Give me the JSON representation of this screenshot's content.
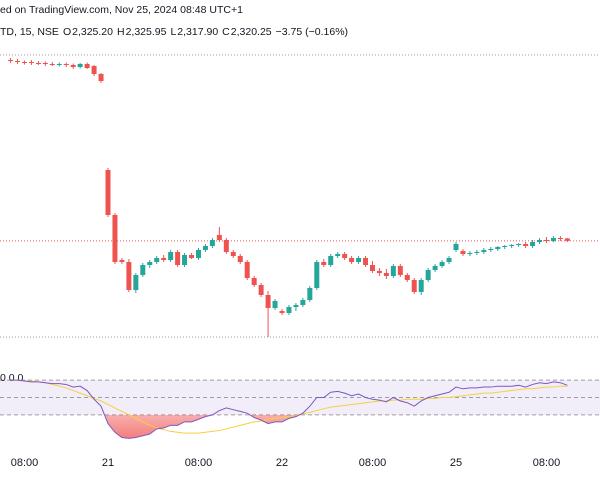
{
  "chart_data": {
    "type": "candlestick",
    "title": "ed on TradingView.com, Nov 25, 2024 08:48 UTC+1",
    "symbol": "TD, 15, NSE",
    "ohlc": [
      {
        "label": "O",
        "value": "2,325.20"
      },
      {
        "label": "H",
        "value": "2,325.95"
      },
      {
        "label": "L",
        "value": "2,317.90"
      },
      {
        "label": "C",
        "value": "2,320.25"
      }
    ],
    "change": "−3.75 (−0.16%)",
    "up_color": "#26a69a",
    "down_color": "#ef5350",
    "ylim": [
      2062,
      2802
    ],
    "price_lines": [
      2692,
      2128
    ],
    "open": [
      2682,
      2680,
      2678,
      2678,
      2676,
      2676,
      2674,
      2673,
      2674,
      2672,
      2668,
      2674,
      2670,
      2654,
      2462,
      2372,
      2282,
      2278,
      2222,
      2252,
      2272,
      2278,
      2286,
      2282,
      2298,
      2272,
      2292,
      2286,
      2302,
      2310,
      2332,
      2322,
      2298,
      2290,
      2278,
      2246,
      2232,
      2212,
      2186,
      2180,
      2176,
      2188,
      2192,
      2202,
      2226,
      2278,
      2272,
      2290,
      2294,
      2286,
      2278,
      2286,
      2272,
      2260,
      2256,
      2250,
      2270,
      2252,
      2242,
      2218,
      2242,
      2262,
      2270,
      2278,
      2302,
      2300,
      2294,
      2296,
      2298,
      2302,
      2304,
      2308,
      2310,
      2312,
      2314,
      2310,
      2318,
      2322,
      2320,
      2326,
      2325.2
    ],
    "high": [
      2686,
      2684,
      2681,
      2682,
      2680,
      2679,
      2678,
      2677,
      2677,
      2675,
      2676,
      2677,
      2672,
      2656,
      2466,
      2376,
      2286,
      2284,
      2256,
      2276,
      2282,
      2290,
      2292,
      2302,
      2302,
      2296,
      2296,
      2306,
      2314,
      2326,
      2348,
      2326,
      2302,
      2294,
      2282,
      2250,
      2236,
      2220,
      2204,
      2184,
      2192,
      2196,
      2206,
      2230,
      2282,
      2284,
      2294,
      2298,
      2298,
      2290,
      2290,
      2290,
      2280,
      2266,
      2264,
      2274,
      2274,
      2256,
      2246,
      2246,
      2266,
      2274,
      2282,
      2290,
      2318,
      2304,
      2300,
      2302,
      2306,
      2308,
      2310,
      2312,
      2314,
      2316,
      2318,
      2322,
      2326,
      2328,
      2330,
      2330,
      2325.95
    ],
    "low": [
      2676,
      2674,
      2673,
      2672,
      2672,
      2670,
      2670,
      2669,
      2668,
      2664,
      2665,
      2664,
      2650,
      2636,
      2368,
      2274,
      2274,
      2218,
      2216,
      2248,
      2266,
      2274,
      2278,
      2278,
      2268,
      2268,
      2284,
      2282,
      2298,
      2306,
      2318,
      2294,
      2286,
      2274,
      2242,
      2228,
      2208,
      2128,
      2182,
      2172,
      2172,
      2180,
      2188,
      2198,
      2222,
      2268,
      2268,
      2286,
      2282,
      2274,
      2274,
      2268,
      2256,
      2250,
      2244,
      2246,
      2248,
      2238,
      2214,
      2212,
      2238,
      2258,
      2266,
      2274,
      2298,
      2290,
      2290,
      2292,
      2294,
      2298,
      2300,
      2304,
      2306,
      2308,
      2306,
      2306,
      2314,
      2316,
      2318,
      2320,
      2317.9
    ],
    "close": [
      2680,
      2678,
      2677,
      2676,
      2675,
      2674,
      2673,
      2674,
      2672,
      2668,
      2674,
      2666,
      2654,
      2640,
      2372,
      2278,
      2278,
      2222,
      2252,
      2272,
      2278,
      2286,
      2282,
      2298,
      2272,
      2292,
      2286,
      2302,
      2310,
      2322,
      2322,
      2298,
      2290,
      2278,
      2246,
      2232,
      2212,
      2186,
      2200,
      2176,
      2188,
      2192,
      2202,
      2226,
      2278,
      2272,
      2290,
      2294,
      2286,
      2278,
      2286,
      2272,
      2260,
      2256,
      2250,
      2270,
      2252,
      2242,
      2218,
      2242,
      2262,
      2270,
      2278,
      2286,
      2314,
      2294,
      2296,
      2298,
      2302,
      2304,
      2308,
      2310,
      2312,
      2314,
      2310,
      2318,
      2322,
      2320,
      2326,
      2325,
      2320.25
    ],
    "xticks": [
      {
        "value": 2,
        "label": "08:00"
      },
      {
        "value": 14,
        "label": "21"
      },
      {
        "value": 27,
        "label": "08:00"
      },
      {
        "value": 39,
        "label": "22"
      },
      {
        "value": 52,
        "label": "08:00"
      },
      {
        "value": 64,
        "label": "25"
      },
      {
        "value": 77,
        "label": "08:00"
      }
    ],
    "rsi": {
      "legend": "0  0  0",
      "ylim": [
        0,
        100
      ],
      "levels": [
        70,
        50,
        30
      ],
      "color": "#7e57c2",
      "ma_color": "#f5d040",
      "values": [
        70,
        70,
        69,
        68,
        68,
        67,
        66,
        66,
        65,
        62,
        63,
        58,
        48,
        40,
        20,
        10,
        4,
        3,
        4,
        6,
        8,
        14,
        15,
        18,
        18,
        22,
        22,
        25,
        28,
        30,
        35,
        38,
        36,
        34,
        32,
        27,
        24,
        20,
        22,
        22,
        26,
        28,
        32,
        40,
        50,
        50,
        56,
        57,
        55,
        52,
        54,
        50,
        48,
        47,
        45,
        50,
        46,
        44,
        40,
        46,
        50,
        52,
        54,
        56,
        62,
        60,
        61,
        61,
        62,
        62,
        63,
        63,
        63,
        64,
        62,
        65,
        67,
        66,
        68,
        67,
        64
      ],
      "ma": [
        70,
        70,
        69,
        69,
        68,
        67,
        65,
        63,
        61,
        58,
        55,
        52,
        49,
        46,
        42,
        38,
        34,
        30,
        26,
        22,
        18,
        15,
        13,
        11,
        10,
        9,
        9,
        9,
        10,
        11,
        12,
        14,
        16,
        18,
        20,
        22,
        23,
        25,
        26,
        27,
        28,
        29,
        31,
        33,
        35,
        37,
        39,
        40,
        41,
        42,
        43,
        44,
        45,
        46,
        46,
        47,
        47,
        48,
        48,
        48,
        49,
        49,
        50,
        50,
        51,
        52,
        53,
        54,
        55,
        55,
        56,
        57,
        58,
        59,
        60,
        60,
        61,
        62,
        62,
        63,
        63
      ]
    }
  }
}
